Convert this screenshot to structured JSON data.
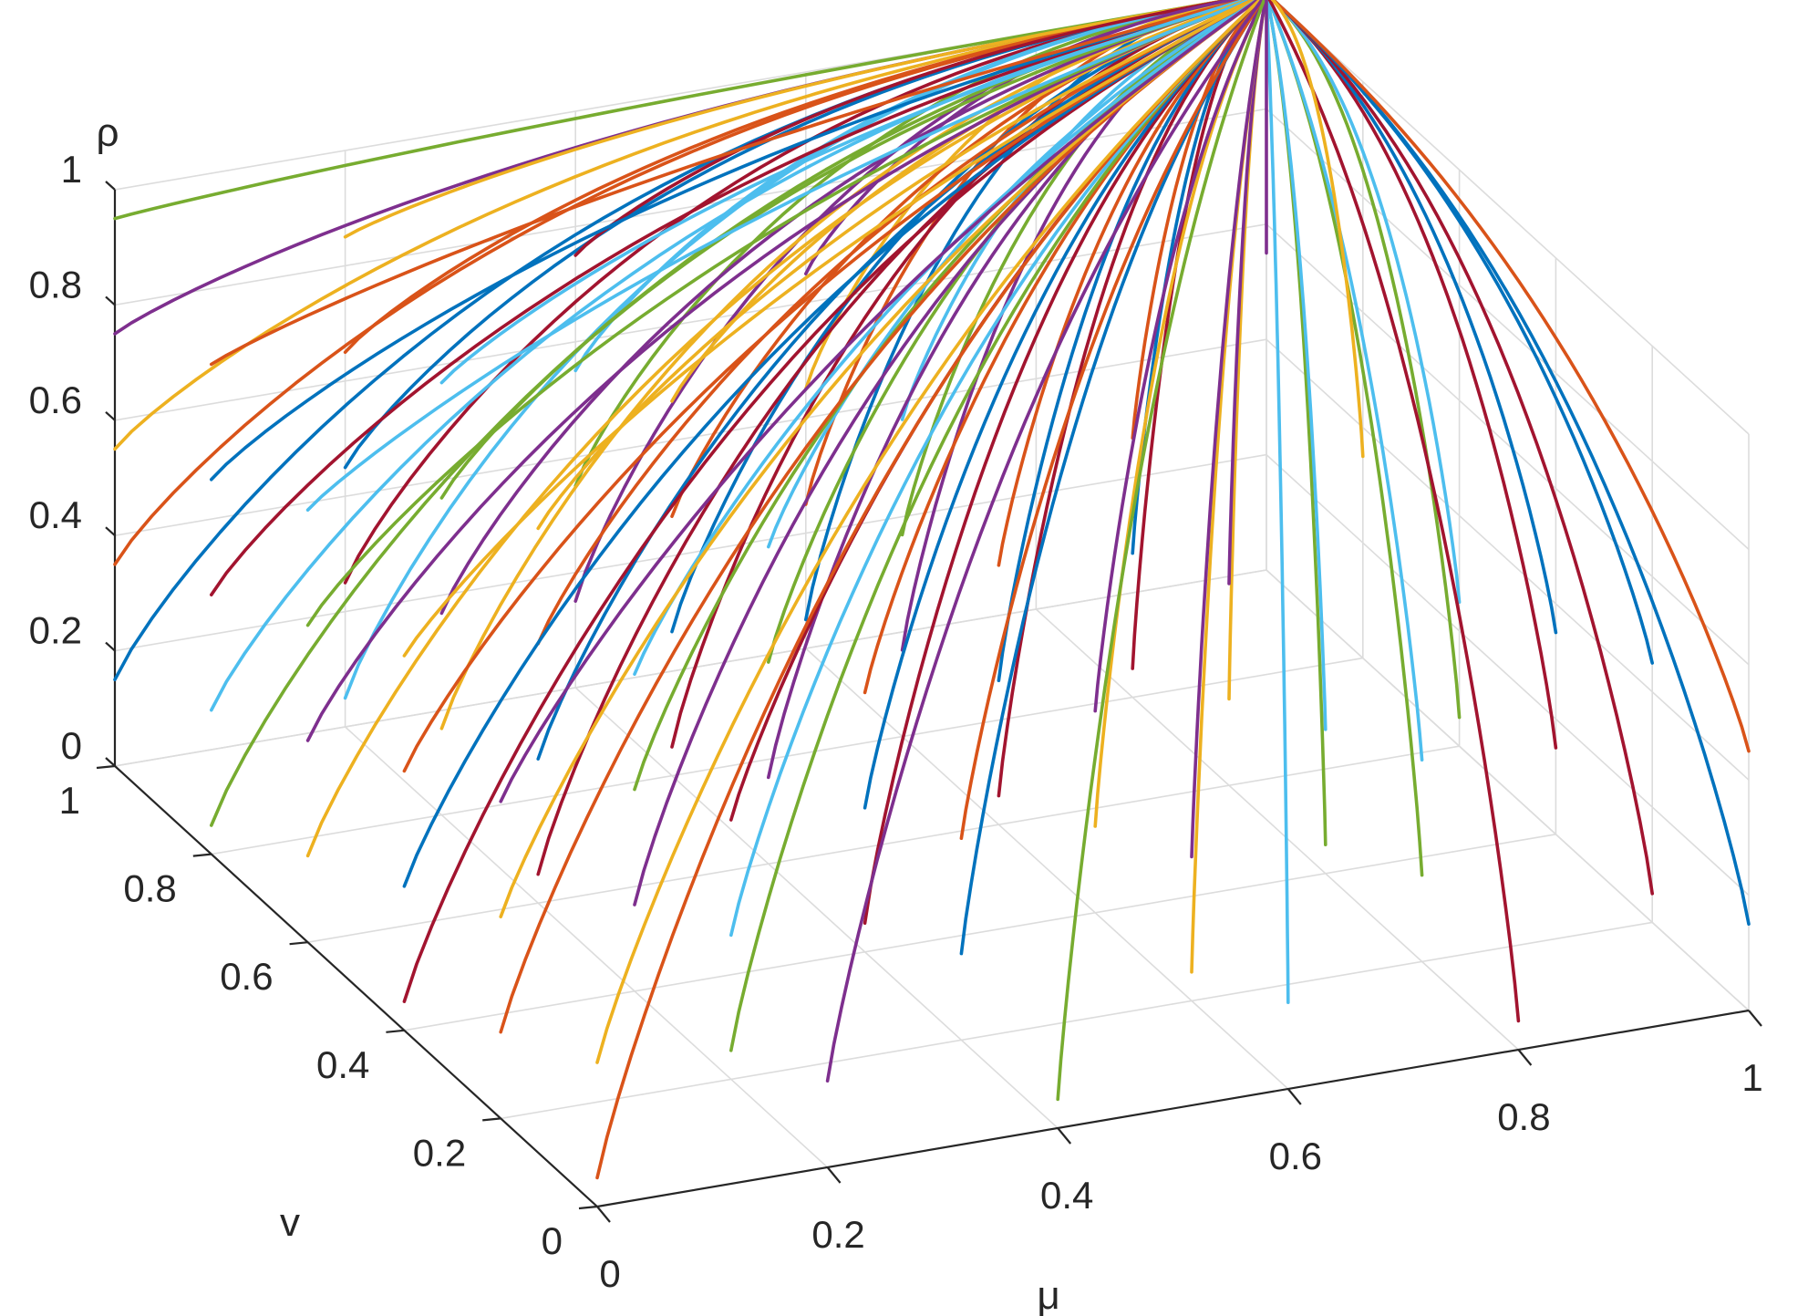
{
  "chart_data": {
    "type": "line",
    "view": "3d",
    "xlabel": "μ",
    "ylabel": "v",
    "zlabel": "ρ",
    "xlim": [
      0,
      1
    ],
    "ylim": [
      0,
      1
    ],
    "zlim": [
      0,
      1
    ],
    "xticks": [
      "0",
      "0.2",
      "0.4",
      "0.6",
      "0.8",
      "1"
    ],
    "yticks": [
      "0",
      "0.2",
      "0.4",
      "0.6",
      "0.8",
      "1"
    ],
    "zticks": [
      "0",
      "0.2",
      "0.4",
      "0.6",
      "0.8",
      "1"
    ],
    "grid": true,
    "convergence_point": [
      1,
      1,
      1
    ],
    "colors": [
      "#0072BD",
      "#D95319",
      "#EDB120",
      "#7E2F8E",
      "#77AC30",
      "#4DBEEE",
      "#A2142F"
    ],
    "series": [
      {
        "start": [
          0.0,
          1.0,
          0.15
        ]
      },
      {
        "start": [
          0.0,
          1.0,
          0.35
        ]
      },
      {
        "start": [
          0.0,
          1.0,
          0.55
        ]
      },
      {
        "start": [
          0.0,
          1.0,
          0.75
        ]
      },
      {
        "start": [
          0.0,
          1.0,
          0.95
        ]
      },
      {
        "start": [
          0.2,
          1.0,
          0.05
        ]
      },
      {
        "start": [
          0.2,
          1.0,
          0.25
        ]
      },
      {
        "start": [
          0.2,
          1.0,
          0.45
        ]
      },
      {
        "start": [
          0.2,
          1.0,
          0.65
        ]
      },
      {
        "start": [
          0.2,
          1.0,
          0.85
        ]
      },
      {
        "start": [
          0.4,
          1.0,
          0.15
        ]
      },
      {
        "start": [
          0.4,
          1.0,
          0.35
        ]
      },
      {
        "start": [
          0.4,
          1.0,
          0.55
        ]
      },
      {
        "start": [
          0.4,
          1.0,
          0.75
        ]
      },
      {
        "start": [
          0.6,
          1.0,
          0.05
        ]
      },
      {
        "start": [
          0.6,
          1.0,
          0.25
        ]
      },
      {
        "start": [
          0.6,
          1.0,
          0.45
        ]
      },
      {
        "start": [
          0.6,
          1.0,
          0.65
        ]
      },
      {
        "start": [
          0.0,
          0.8,
          0.05
        ]
      },
      {
        "start": [
          0.0,
          0.8,
          0.25
        ]
      },
      {
        "start": [
          0.0,
          0.8,
          0.45
        ]
      },
      {
        "start": [
          0.0,
          0.8,
          0.65
        ]
      },
      {
        "start": [
          0.0,
          0.8,
          0.85
        ]
      },
      {
        "start": [
          0.2,
          0.8,
          0.15
        ]
      },
      {
        "start": [
          0.2,
          0.8,
          0.35
        ]
      },
      {
        "start": [
          0.2,
          0.8,
          0.55
        ]
      },
      {
        "start": [
          0.2,
          0.8,
          0.75
        ]
      },
      {
        "start": [
          0.4,
          0.8,
          0.05
        ]
      },
      {
        "start": [
          0.4,
          0.8,
          0.25
        ]
      },
      {
        "start": [
          0.4,
          0.8,
          0.45
        ]
      },
      {
        "start": [
          0.4,
          0.8,
          0.65
        ]
      },
      {
        "start": [
          0.6,
          0.8,
          0.15
        ]
      },
      {
        "start": [
          0.6,
          0.8,
          0.35
        ]
      },
      {
        "start": [
          0.6,
          0.8,
          0.55
        ]
      },
      {
        "start": [
          0.8,
          0.8,
          0.05
        ]
      },
      {
        "start": [
          0.8,
          0.8,
          0.25
        ]
      },
      {
        "start": [
          0.8,
          0.8,
          0.45
        ]
      },
      {
        "start": [
          0.0,
          0.6,
          0.15
        ]
      },
      {
        "start": [
          0.0,
          0.6,
          0.35
        ]
      },
      {
        "start": [
          0.0,
          0.6,
          0.55
        ]
      },
      {
        "start": [
          0.0,
          0.6,
          0.75
        ]
      },
      {
        "start": [
          0.2,
          0.6,
          0.05
        ]
      },
      {
        "start": [
          0.2,
          0.6,
          0.25
        ]
      },
      {
        "start": [
          0.2,
          0.6,
          0.45
        ]
      },
      {
        "start": [
          0.2,
          0.6,
          0.65
        ]
      },
      {
        "start": [
          0.4,
          0.6,
          0.15
        ]
      },
      {
        "start": [
          0.4,
          0.6,
          0.35
        ]
      },
      {
        "start": [
          0.4,
          0.6,
          0.55
        ]
      },
      {
        "start": [
          0.6,
          0.6,
          0.05
        ]
      },
      {
        "start": [
          0.6,
          0.6,
          0.25
        ]
      },
      {
        "start": [
          0.6,
          0.6,
          0.45
        ]
      },
      {
        "start": [
          0.8,
          0.6,
          0.15
        ]
      },
      {
        "start": [
          0.8,
          0.6,
          0.35
        ]
      },
      {
        "start": [
          1.0,
          0.6,
          0.05
        ]
      },
      {
        "start": [
          1.0,
          0.6,
          0.25
        ]
      },
      {
        "start": [
          0.0,
          0.4,
          0.05
        ]
      },
      {
        "start": [
          0.0,
          0.4,
          0.25
        ]
      },
      {
        "start": [
          0.0,
          0.4,
          0.45
        ]
      },
      {
        "start": [
          0.0,
          0.4,
          0.65
        ]
      },
      {
        "start": [
          0.2,
          0.4,
          0.15
        ]
      },
      {
        "start": [
          0.2,
          0.4,
          0.35
        ]
      },
      {
        "start": [
          0.2,
          0.4,
          0.55
        ]
      },
      {
        "start": [
          0.4,
          0.4,
          0.05
        ]
      },
      {
        "start": [
          0.4,
          0.4,
          0.25
        ]
      },
      {
        "start": [
          0.4,
          0.4,
          0.45
        ]
      },
      {
        "start": [
          0.6,
          0.4,
          0.15
        ]
      },
      {
        "start": [
          0.6,
          0.4,
          0.35
        ]
      },
      {
        "start": [
          0.8,
          0.4,
          0.05
        ]
      },
      {
        "start": [
          0.8,
          0.4,
          0.25
        ]
      },
      {
        "start": [
          1.0,
          0.4,
          0.15
        ]
      },
      {
        "start": [
          1.0,
          0.4,
          0.35
        ]
      },
      {
        "start": [
          0.0,
          0.2,
          0.15
        ]
      },
      {
        "start": [
          0.0,
          0.2,
          0.35
        ]
      },
      {
        "start": [
          0.0,
          0.2,
          0.55
        ]
      },
      {
        "start": [
          0.2,
          0.2,
          0.05
        ]
      },
      {
        "start": [
          0.2,
          0.2,
          0.25
        ]
      },
      {
        "start": [
          0.2,
          0.2,
          0.45
        ]
      },
      {
        "start": [
          0.4,
          0.2,
          0.15
        ]
      },
      {
        "start": [
          0.4,
          0.2,
          0.35
        ]
      },
      {
        "start": [
          0.6,
          0.2,
          0.05
        ]
      },
      {
        "start": [
          0.6,
          0.2,
          0.25
        ]
      },
      {
        "start": [
          0.8,
          0.2,
          0.15
        ]
      },
      {
        "start": [
          0.8,
          0.2,
          0.35
        ]
      },
      {
        "start": [
          1.0,
          0.2,
          0.05
        ]
      },
      {
        "start": [
          1.0,
          0.2,
          0.45
        ]
      },
      {
        "start": [
          0.0,
          0.0,
          0.05
        ]
      },
      {
        "start": [
          0.0,
          0.0,
          0.25
        ]
      },
      {
        "start": [
          0.2,
          0.0,
          0.15
        ]
      },
      {
        "start": [
          0.4,
          0.0,
          0.05
        ]
      },
      {
        "start": [
          0.6,
          0.0,
          0.15
        ]
      },
      {
        "start": [
          0.8,
          0.0,
          0.05
        ]
      },
      {
        "start": [
          1.0,
          0.0,
          0.15
        ]
      },
      {
        "start": [
          1.0,
          0.0,
          0.45
        ]
      },
      {
        "start": [
          1.0,
          0.8,
          0.35
        ]
      },
      {
        "start": [
          1.0,
          1.0,
          0.55
        ]
      }
    ]
  }
}
